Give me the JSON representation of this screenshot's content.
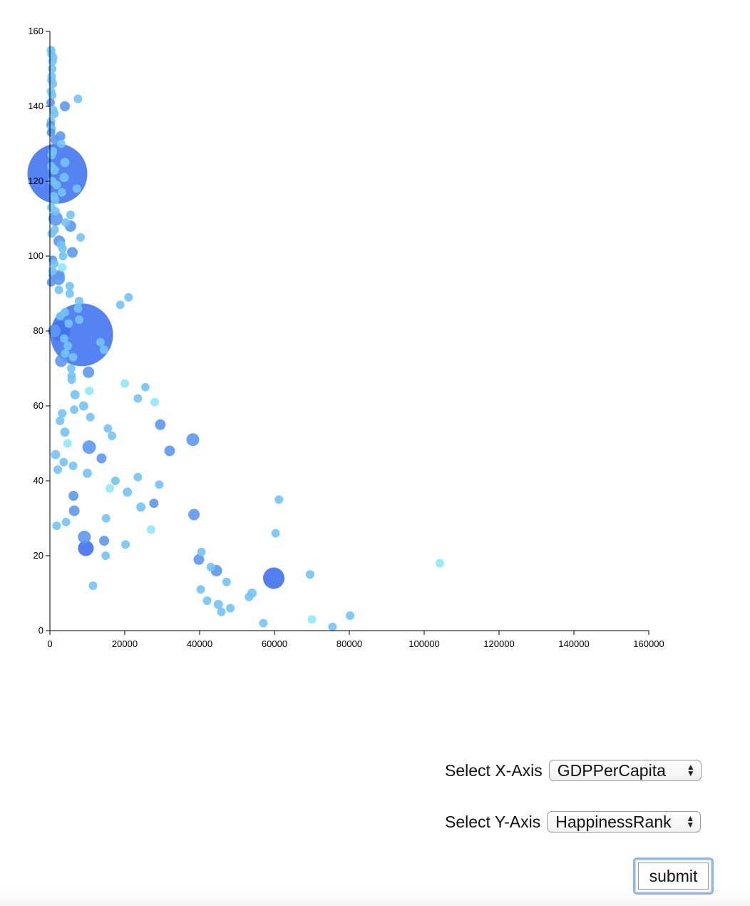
{
  "controls": {
    "x_axis_label": "Select X-Axis",
    "x_axis_selected": "GDPPerCapita",
    "y_axis_label": "Select Y-Axis",
    "y_axis_selected": "HappinessRank",
    "submit_label": "submit"
  },
  "colors": {
    "large": "#3f72f0",
    "mid": "#5b98f2",
    "small": "#72c4f8",
    "pale": "#8ee8fb",
    "axis": "#000000"
  },
  "chart_data": {
    "type": "scatter",
    "title": "",
    "xlabel": "",
    "ylabel": "",
    "xlim": [
      0,
      160000
    ],
    "ylim": [
      0,
      160
    ],
    "xticks": [
      0,
      20000,
      40000,
      60000,
      80000,
      100000,
      120000,
      140000,
      160000
    ],
    "yticks": [
      0,
      20,
      40,
      60,
      80,
      100,
      120,
      140,
      160
    ],
    "grid": false,
    "legend": "none",
    "size_encoding": "bubble size varies per point",
    "points": [
      {
        "x": 2000,
        "y": 122,
        "size": 42,
        "tone": "large"
      },
      {
        "x": 8500,
        "y": 79,
        "size": 44,
        "tone": "large"
      },
      {
        "x": 59800,
        "y": 14,
        "size": 15,
        "tone": "large"
      },
      {
        "x": 38200,
        "y": 51,
        "size": 9,
        "tone": "mid"
      },
      {
        "x": 10500,
        "y": 49,
        "size": 9.5,
        "tone": "mid"
      },
      {
        "x": 9600,
        "y": 22,
        "size": 11,
        "tone": "large"
      },
      {
        "x": 9200,
        "y": 25,
        "size": 9,
        "tone": "mid"
      },
      {
        "x": 2800,
        "y": 80,
        "size": 14,
        "tone": "large"
      },
      {
        "x": 1200,
        "y": 80,
        "size": 9,
        "tone": "mid"
      },
      {
        "x": 1500,
        "y": 110,
        "size": 10,
        "tone": "mid"
      },
      {
        "x": 2300,
        "y": 94,
        "size": 9,
        "tone": "mid"
      },
      {
        "x": 2500,
        "y": 104,
        "size": 8,
        "tone": "mid"
      },
      {
        "x": 5500,
        "y": 108,
        "size": 8,
        "tone": "mid"
      },
      {
        "x": 6000,
        "y": 101,
        "size": 7.5,
        "tone": "mid"
      },
      {
        "x": 3000,
        "y": 72,
        "size": 8.5,
        "tone": "mid"
      },
      {
        "x": 10300,
        "y": 69,
        "size": 8,
        "tone": "mid"
      },
      {
        "x": 29500,
        "y": 55,
        "size": 7.5,
        "tone": "mid"
      },
      {
        "x": 32000,
        "y": 48,
        "size": 7.5,
        "tone": "mid"
      },
      {
        "x": 38500,
        "y": 31,
        "size": 8,
        "tone": "mid"
      },
      {
        "x": 44500,
        "y": 16,
        "size": 8,
        "tone": "mid"
      },
      {
        "x": 39800,
        "y": 19,
        "size": 7.5,
        "tone": "mid"
      },
      {
        "x": 6500,
        "y": 32,
        "size": 7.5,
        "tone": "mid"
      },
      {
        "x": 6300,
        "y": 36,
        "size": 7,
        "tone": "mid"
      },
      {
        "x": 14500,
        "y": 24,
        "size": 7,
        "tone": "mid"
      },
      {
        "x": 13800,
        "y": 46,
        "size": 7,
        "tone": "mid"
      },
      {
        "x": 2800,
        "y": 132,
        "size": 7,
        "tone": "mid"
      },
      {
        "x": 4000,
        "y": 140,
        "size": 7,
        "tone": "mid"
      },
      {
        "x": 7500,
        "y": 142,
        "size": 6,
        "tone": "small"
      },
      {
        "x": 300,
        "y": 155,
        "size": 6,
        "tone": "small"
      },
      {
        "x": 400,
        "y": 154,
        "size": 6,
        "tone": "small"
      },
      {
        "x": 900,
        "y": 153,
        "size": 6,
        "tone": "small"
      },
      {
        "x": 700,
        "y": 152,
        "size": 6,
        "tone": "small"
      },
      {
        "x": 600,
        "y": 150,
        "size": 6,
        "tone": "small"
      },
      {
        "x": 500,
        "y": 148,
        "size": 6,
        "tone": "small"
      },
      {
        "x": 400,
        "y": 147,
        "size": 6,
        "tone": "small"
      },
      {
        "x": 800,
        "y": 146,
        "size": 6,
        "tone": "small"
      },
      {
        "x": 300,
        "y": 144,
        "size": 6,
        "tone": "small"
      },
      {
        "x": 600,
        "y": 143,
        "size": 6,
        "tone": "small"
      },
      {
        "x": 200,
        "y": 141,
        "size": 6,
        "tone": "mid"
      },
      {
        "x": 900,
        "y": 139,
        "size": 6,
        "tone": "small"
      },
      {
        "x": 1200,
        "y": 138,
        "size": 6,
        "tone": "small"
      },
      {
        "x": 300,
        "y": 136,
        "size": 6,
        "tone": "small"
      },
      {
        "x": 200,
        "y": 135,
        "size": 6,
        "tone": "mid"
      },
      {
        "x": 500,
        "y": 134,
        "size": 6,
        "tone": "small"
      },
      {
        "x": 300,
        "y": 133,
        "size": 6,
        "tone": "mid"
      },
      {
        "x": 1500,
        "y": 131,
        "size": 7,
        "tone": "mid"
      },
      {
        "x": 3000,
        "y": 130,
        "size": 6,
        "tone": "small"
      },
      {
        "x": 800,
        "y": 128,
        "size": 6,
        "tone": "small"
      },
      {
        "x": 500,
        "y": 127,
        "size": 6,
        "tone": "small"
      },
      {
        "x": 4000,
        "y": 125,
        "size": 6.5,
        "tone": "small"
      },
      {
        "x": 400,
        "y": 124,
        "size": 6,
        "tone": "small"
      },
      {
        "x": 1200,
        "y": 123,
        "size": 6.5,
        "tone": "small"
      },
      {
        "x": 3800,
        "y": 121,
        "size": 6.5,
        "tone": "small"
      },
      {
        "x": 600,
        "y": 120,
        "size": 6,
        "tone": "small"
      },
      {
        "x": 1800,
        "y": 119,
        "size": 6,
        "tone": "small"
      },
      {
        "x": 7200,
        "y": 118,
        "size": 6,
        "tone": "small"
      },
      {
        "x": 3200,
        "y": 117,
        "size": 6,
        "tone": "small"
      },
      {
        "x": 1000,
        "y": 116,
        "size": 6,
        "tone": "small"
      },
      {
        "x": 1400,
        "y": 115,
        "size": 6,
        "tone": "small"
      },
      {
        "x": 400,
        "y": 113,
        "size": 6,
        "tone": "small"
      },
      {
        "x": 1500,
        "y": 112,
        "size": 6,
        "tone": "small"
      },
      {
        "x": 5500,
        "y": 111,
        "size": 6,
        "tone": "small"
      },
      {
        "x": 4200,
        "y": 109,
        "size": 6,
        "tone": "small"
      },
      {
        "x": 1300,
        "y": 107,
        "size": 6,
        "tone": "small"
      },
      {
        "x": 500,
        "y": 106,
        "size": 6,
        "tone": "small"
      },
      {
        "x": 8200,
        "y": 105,
        "size": 6,
        "tone": "small"
      },
      {
        "x": 3000,
        "y": 103,
        "size": 6,
        "tone": "small"
      },
      {
        "x": 3400,
        "y": 102,
        "size": 6,
        "tone": "small"
      },
      {
        "x": 3500,
        "y": 100,
        "size": 6,
        "tone": "small"
      },
      {
        "x": 800,
        "y": 99,
        "size": 6,
        "tone": "mid"
      },
      {
        "x": 1200,
        "y": 98,
        "size": 6,
        "tone": "small"
      },
      {
        "x": 3300,
        "y": 97,
        "size": 6,
        "tone": "pale"
      },
      {
        "x": 700,
        "y": 96,
        "size": 6,
        "tone": "small"
      },
      {
        "x": 1000,
        "y": 95,
        "size": 7,
        "tone": "mid"
      },
      {
        "x": 2600,
        "y": 95,
        "size": 7,
        "tone": "mid"
      },
      {
        "x": 300,
        "y": 93,
        "size": 6,
        "tone": "mid"
      },
      {
        "x": 5300,
        "y": 92,
        "size": 6,
        "tone": "small"
      },
      {
        "x": 2400,
        "y": 91,
        "size": 6,
        "tone": "small"
      },
      {
        "x": 5300,
        "y": 90,
        "size": 6,
        "tone": "small"
      },
      {
        "x": 21000,
        "y": 89,
        "size": 6,
        "tone": "small"
      },
      {
        "x": 7800,
        "y": 88,
        "size": 6,
        "tone": "small"
      },
      {
        "x": 18800,
        "y": 87,
        "size": 6,
        "tone": "small"
      },
      {
        "x": 7500,
        "y": 86,
        "size": 6,
        "tone": "small"
      },
      {
        "x": 4000,
        "y": 85,
        "size": 6,
        "tone": "small"
      },
      {
        "x": 2800,
        "y": 84,
        "size": 6,
        "tone": "small"
      },
      {
        "x": 7800,
        "y": 83,
        "size": 6,
        "tone": "small"
      },
      {
        "x": 5000,
        "y": 82,
        "size": 6,
        "tone": "small"
      },
      {
        "x": 3800,
        "y": 78,
        "size": 6,
        "tone": "small"
      },
      {
        "x": 13500,
        "y": 77,
        "size": 6,
        "tone": "small"
      },
      {
        "x": 4800,
        "y": 76,
        "size": 6,
        "tone": "small"
      },
      {
        "x": 14500,
        "y": 75,
        "size": 6,
        "tone": "small"
      },
      {
        "x": 4100,
        "y": 74,
        "size": 6,
        "tone": "small"
      },
      {
        "x": 6200,
        "y": 73,
        "size": 6,
        "tone": "small"
      },
      {
        "x": 5700,
        "y": 70,
        "size": 6,
        "tone": "small"
      },
      {
        "x": 5800,
        "y": 68,
        "size": 6,
        "tone": "small"
      },
      {
        "x": 5800,
        "y": 67,
        "size": 6,
        "tone": "small"
      },
      {
        "x": 20000,
        "y": 66,
        "size": 6,
        "tone": "pale"
      },
      {
        "x": 25500,
        "y": 65,
        "size": 6,
        "tone": "small"
      },
      {
        "x": 10500,
        "y": 64,
        "size": 6,
        "tone": "pale"
      },
      {
        "x": 6700,
        "y": 63,
        "size": 6.5,
        "tone": "small"
      },
      {
        "x": 23500,
        "y": 62,
        "size": 6,
        "tone": "small"
      },
      {
        "x": 28000,
        "y": 61,
        "size": 6,
        "tone": "pale"
      },
      {
        "x": 9000,
        "y": 60,
        "size": 6.5,
        "tone": "small"
      },
      {
        "x": 6500,
        "y": 59,
        "size": 6,
        "tone": "small"
      },
      {
        "x": 3300,
        "y": 58,
        "size": 6,
        "tone": "small"
      },
      {
        "x": 10800,
        "y": 57,
        "size": 6,
        "tone": "small"
      },
      {
        "x": 2700,
        "y": 56,
        "size": 6,
        "tone": "small"
      },
      {
        "x": 15500,
        "y": 54,
        "size": 6,
        "tone": "small"
      },
      {
        "x": 4000,
        "y": 53,
        "size": 6.5,
        "tone": "small"
      },
      {
        "x": 16600,
        "y": 52,
        "size": 6,
        "tone": "small"
      },
      {
        "x": 4700,
        "y": 50,
        "size": 6,
        "tone": "pale"
      },
      {
        "x": 1500,
        "y": 47,
        "size": 6.5,
        "tone": "small"
      },
      {
        "x": 3700,
        "y": 45,
        "size": 6,
        "tone": "small"
      },
      {
        "x": 6200,
        "y": 44,
        "size": 6,
        "tone": "small"
      },
      {
        "x": 2100,
        "y": 43,
        "size": 6,
        "tone": "small"
      },
      {
        "x": 10000,
        "y": 42,
        "size": 6.5,
        "tone": "small"
      },
      {
        "x": 23500,
        "y": 41,
        "size": 6,
        "tone": "small"
      },
      {
        "x": 17500,
        "y": 40,
        "size": 6,
        "tone": "small"
      },
      {
        "x": 29200,
        "y": 39,
        "size": 6,
        "tone": "small"
      },
      {
        "x": 16000,
        "y": 38,
        "size": 6,
        "tone": "pale"
      },
      {
        "x": 20700,
        "y": 37,
        "size": 6.5,
        "tone": "small"
      },
      {
        "x": 61200,
        "y": 35,
        "size": 6,
        "tone": "small"
      },
      {
        "x": 27800,
        "y": 34,
        "size": 6.5,
        "tone": "mid"
      },
      {
        "x": 24300,
        "y": 33,
        "size": 6.5,
        "tone": "small"
      },
      {
        "x": 15000,
        "y": 30,
        "size": 6,
        "tone": "small"
      },
      {
        "x": 4300,
        "y": 29,
        "size": 6,
        "tone": "small"
      },
      {
        "x": 1800,
        "y": 28,
        "size": 6,
        "tone": "small"
      },
      {
        "x": 27000,
        "y": 27,
        "size": 6,
        "tone": "pale"
      },
      {
        "x": 60300,
        "y": 26,
        "size": 6,
        "tone": "small"
      },
      {
        "x": 20200,
        "y": 23,
        "size": 6,
        "tone": "small"
      },
      {
        "x": 40500,
        "y": 21,
        "size": 6,
        "tone": "small"
      },
      {
        "x": 14900,
        "y": 20,
        "size": 6,
        "tone": "small"
      },
      {
        "x": 104200,
        "y": 18,
        "size": 6,
        "tone": "pale"
      },
      {
        "x": 43000,
        "y": 17,
        "size": 6,
        "tone": "small"
      },
      {
        "x": 69500,
        "y": 15,
        "size": 6,
        "tone": "small"
      },
      {
        "x": 47200,
        "y": 13,
        "size": 6,
        "tone": "small"
      },
      {
        "x": 11500,
        "y": 12,
        "size": 6,
        "tone": "small"
      },
      {
        "x": 40300,
        "y": 11,
        "size": 6,
        "tone": "small"
      },
      {
        "x": 54000,
        "y": 10,
        "size": 6.5,
        "tone": "small"
      },
      {
        "x": 53200,
        "y": 9,
        "size": 6,
        "tone": "small"
      },
      {
        "x": 42000,
        "y": 8,
        "size": 6,
        "tone": "small"
      },
      {
        "x": 45000,
        "y": 7,
        "size": 6.5,
        "tone": "small"
      },
      {
        "x": 48200,
        "y": 6,
        "size": 6,
        "tone": "small"
      },
      {
        "x": 45800,
        "y": 5,
        "size": 6,
        "tone": "small"
      },
      {
        "x": 80200,
        "y": 4,
        "size": 6,
        "tone": "small"
      },
      {
        "x": 70000,
        "y": 3,
        "size": 6,
        "tone": "pale"
      },
      {
        "x": 57000,
        "y": 2,
        "size": 6,
        "tone": "small"
      },
      {
        "x": 75500,
        "y": 1,
        "size": 6,
        "tone": "small"
      }
    ]
  }
}
